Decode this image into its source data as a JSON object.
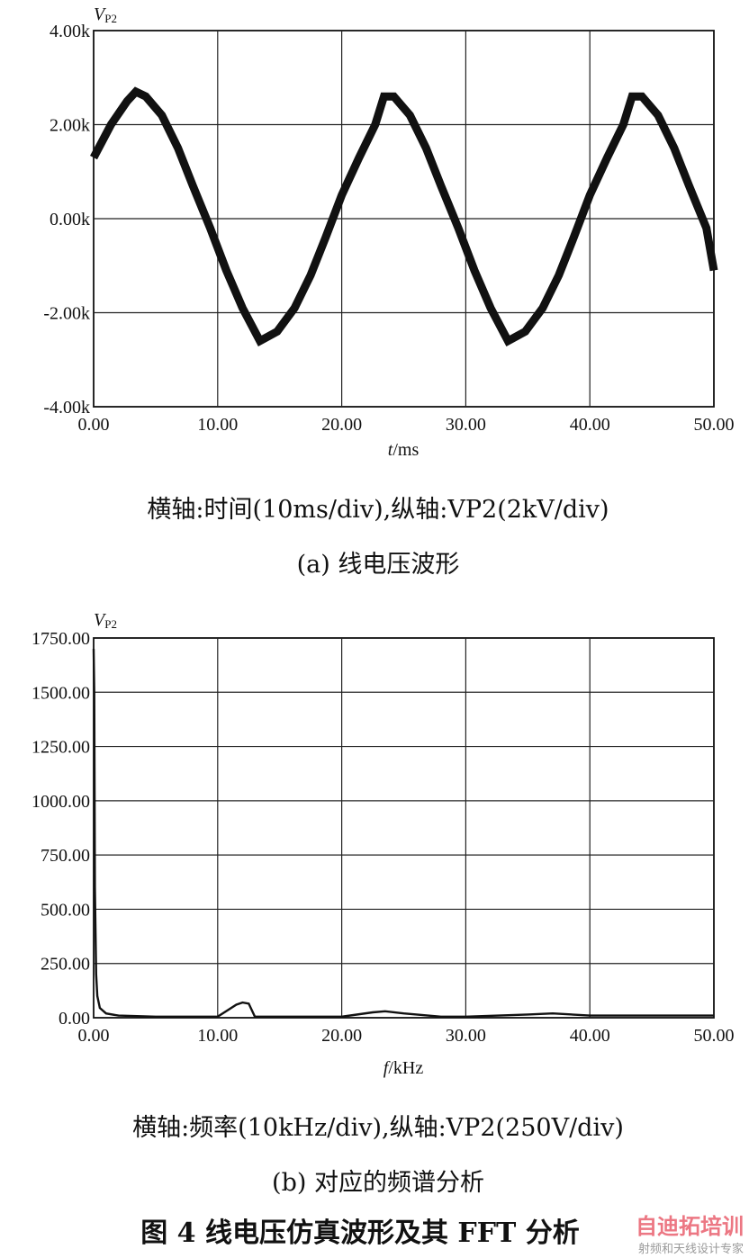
{
  "chart_data": [
    {
      "type": "line",
      "ylabel": "V",
      "ylabel_sub": "P2",
      "xlabel_italic": "t",
      "xlabel_unit": "/ms",
      "xlim": [
        0,
        50
      ],
      "ylim": [
        -4,
        4
      ],
      "x_ticks": [
        "0.00",
        "10.00",
        "20.00",
        "30.00",
        "40.00",
        "50.00"
      ],
      "y_ticks": [
        "-4.00k",
        "-2.00k",
        "0.00k",
        "2.00k",
        "4.00k"
      ],
      "grid": true,
      "series": [
        {
          "x": [
            0,
            1.4,
            2.7,
            3.4,
            4.2,
            5.5,
            6.8,
            8.0,
            9.4,
            10.7,
            12.0,
            13.4,
            14.8,
            16.2,
            17.5,
            18.7,
            20.0,
            21.4,
            22.7,
            23.4,
            24.2,
            25.5,
            26.8,
            28.0,
            29.4,
            30.7,
            32.0,
            33.4,
            34.8,
            36.2,
            37.5,
            38.7,
            40.0,
            41.4,
            42.7,
            43.4,
            44.2,
            45.5,
            46.8,
            48.0,
            49.4,
            50.0
          ],
          "y": [
            1.3,
            2.0,
            2.5,
            2.7,
            2.6,
            2.2,
            1.5,
            0.7,
            -0.2,
            -1.1,
            -1.9,
            -2.6,
            -2.4,
            -1.9,
            -1.2,
            -0.4,
            0.5,
            1.3,
            2.0,
            2.6,
            2.6,
            2.2,
            1.5,
            0.7,
            -0.2,
            -1.1,
            -1.9,
            -2.6,
            -2.4,
            -1.9,
            -1.2,
            -0.4,
            0.5,
            1.3,
            2.0,
            2.6,
            2.6,
            2.2,
            1.5,
            0.7,
            -0.2,
            -1.1
          ]
        }
      ]
    },
    {
      "type": "line",
      "ylabel": "V",
      "ylabel_sub": "P2",
      "xlabel_italic": "f",
      "xlabel_unit": "/kHz",
      "xlim": [
        0,
        50
      ],
      "ylim": [
        0,
        1750
      ],
      "x_ticks": [
        "0.00",
        "10.00",
        "20.00",
        "30.00",
        "40.00",
        "50.00"
      ],
      "y_ticks": [
        "0.00",
        "250.00",
        "500.00",
        "750.00",
        "1000.00",
        "1250.00",
        "1500.00",
        "1750.00"
      ],
      "grid": true,
      "series": [
        {
          "x": [
            0,
            0.05,
            0.1,
            0.2,
            0.3,
            0.5,
            1.0,
            2.0,
            5.0,
            10.0,
            11.5,
            12.0,
            12.5,
            13.0,
            15.0,
            20.0,
            22.5,
            23.5,
            25.0,
            28.0,
            30.0,
            35.0,
            37.0,
            40.0,
            45.0,
            50.0
          ],
          "y": [
            1700,
            1500,
            600,
            200,
            100,
            45,
            20,
            10,
            5,
            5,
            60,
            70,
            65,
            5,
            5,
            5,
            25,
            30,
            20,
            5,
            5,
            15,
            20,
            10,
            10,
            10
          ]
        }
      ]
    }
  ],
  "captions": {
    "a_axes": "横轴:时间(10ms/div),纵轴:VP2(2kV/div)",
    "a_title": "(a)  线电压波形",
    "b_axes": "横轴:频率(10kHz/div),纵轴:VP2(250V/div)",
    "b_title": "(b)  对应的频谱分析",
    "figure": "图 4  线电压仿真波形及其 FFT 分析"
  },
  "watermark": {
    "line1": "自迪拓培训",
    "line2": "射频和天线设计专家"
  }
}
